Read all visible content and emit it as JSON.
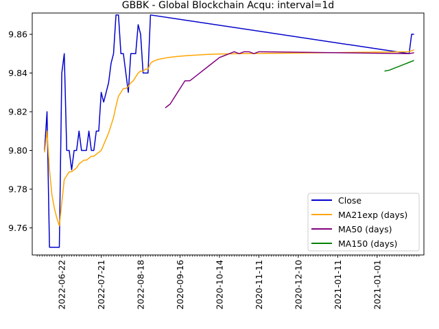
{
  "chart_data": {
    "type": "line",
    "title": "GBBK - Global Blockchain Acqu: interval=1d",
    "xlabel": "",
    "ylabel": "",
    "ylim": [
      9.746,
      9.871
    ],
    "yticks": [
      "9.76",
      "9.78",
      "9.80",
      "9.82",
      "9.84",
      "9.86"
    ],
    "ytick_values": [
      9.76,
      9.78,
      9.8,
      9.82,
      9.84,
      9.86
    ],
    "x_range": [
      -5,
      154
    ],
    "xticks": [
      {
        "label": "2022-06-22",
        "x": 7
      },
      {
        "label": "2022-07-21",
        "x": 23
      },
      {
        "label": "2022-08-18",
        "x": 39
      },
      {
        "label": "2020-09-16",
        "x": 55
      },
      {
        "label": "2020-10-14",
        "x": 71
      },
      {
        "label": "2020-11-11",
        "x": 87
      },
      {
        "label": "2020-12-10",
        "x": 103
      },
      {
        "label": "2021-01-11",
        "x": 119
      },
      {
        "label": "2021-01-01",
        "x": 135
      }
    ],
    "grid": false,
    "legend_position": "lower-right",
    "series": [
      {
        "name": "Close",
        "color": "#0000cc",
        "x": [
          0,
          1,
          2,
          3,
          4,
          5,
          6,
          7,
          8,
          9,
          10,
          11,
          12,
          13,
          14,
          15,
          16,
          17,
          18,
          19,
          20,
          21,
          22,
          23,
          24,
          25,
          26,
          27,
          28,
          29,
          30,
          31,
          32,
          33,
          34,
          35,
          36,
          37,
          38,
          39,
          40,
          41,
          42,
          43,
          148,
          149,
          150
        ],
        "y": [
          9.8,
          9.82,
          9.75,
          9.75,
          9.75,
          9.75,
          9.75,
          9.84,
          9.85,
          9.8,
          9.8,
          9.79,
          9.8,
          9.8,
          9.81,
          9.8,
          9.8,
          9.8,
          9.81,
          9.8,
          9.8,
          9.81,
          9.81,
          9.83,
          9.825,
          9.83,
          9.835,
          9.845,
          9.85,
          9.87,
          9.87,
          9.85,
          9.85,
          9.84,
          9.83,
          9.85,
          9.85,
          9.85,
          9.865,
          9.86,
          9.84,
          9.84,
          9.84,
          9.87,
          9.85,
          9.86,
          9.86
        ]
      },
      {
        "name": "MA21exp (days)",
        "color": "#ffa500",
        "x": [
          0,
          1,
          2,
          3,
          4,
          5,
          6,
          7,
          8,
          9,
          10,
          11,
          12,
          13,
          14,
          15,
          16,
          17,
          18,
          19,
          20,
          21,
          22,
          23,
          24,
          25,
          26,
          27,
          28,
          29,
          30,
          31,
          32,
          33,
          34,
          35,
          36,
          37,
          38,
          39,
          40,
          41,
          42,
          43,
          44,
          46,
          48,
          50,
          52,
          55,
          58,
          62,
          66,
          70,
          74,
          80,
          148,
          150
        ],
        "y": [
          9.799,
          9.81,
          9.79,
          9.777,
          9.77,
          9.765,
          9.761,
          9.773,
          9.785,
          9.787,
          9.789,
          9.789,
          9.79,
          9.791,
          9.793,
          9.794,
          9.795,
          9.795,
          9.796,
          9.797,
          9.797,
          9.798,
          9.799,
          9.8,
          9.803,
          9.806,
          9.809,
          9.813,
          9.817,
          9.823,
          9.828,
          9.83,
          9.832,
          9.832,
          9.833,
          9.835,
          9.836,
          9.838,
          9.84,
          9.841,
          9.841,
          9.842,
          9.842,
          9.845,
          9.846,
          9.847,
          9.8475,
          9.848,
          9.8483,
          9.8487,
          9.849,
          9.8493,
          9.8496,
          9.8498,
          9.8499,
          9.85,
          9.851,
          9.852
        ]
      },
      {
        "name": "MA50 (days)",
        "color": "#800080",
        "x": [
          49,
          51,
          53,
          55,
          57,
          59,
          61,
          63,
          65,
          67,
          69,
          71,
          73,
          75,
          77,
          79,
          81,
          83,
          85,
          87,
          148,
          150
        ],
        "y": [
          9.822,
          9.824,
          9.828,
          9.832,
          9.836,
          9.836,
          9.838,
          9.84,
          9.842,
          9.844,
          9.846,
          9.848,
          9.849,
          9.85,
          9.851,
          9.85,
          9.851,
          9.851,
          9.85,
          9.851,
          9.85,
          9.8505
        ]
      },
      {
        "name": "MA150 (days)",
        "color": "#008000",
        "x": [
          138,
          140,
          142,
          144,
          146,
          148,
          150
        ],
        "y": [
          9.841,
          9.8415,
          9.8425,
          9.8435,
          9.8445,
          9.8455,
          9.8465
        ]
      }
    ]
  }
}
